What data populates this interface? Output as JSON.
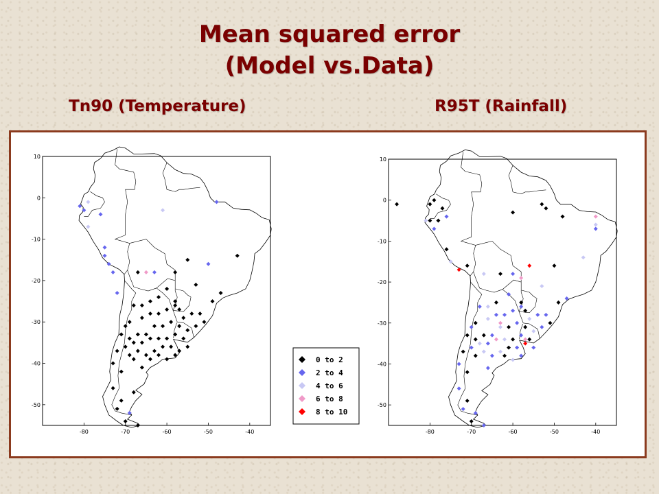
{
  "title_line1": "Mean squared error",
  "title_line2": "(Model vs.Data)",
  "left_panel": {
    "title": "Tn90 (Temperature)"
  },
  "right_panel": {
    "title": "R95T (Rainfall)"
  },
  "legend": [
    {
      "label": "0  to  2",
      "color": "#000000"
    },
    {
      "label": "2  to  4",
      "color": "#6666ee"
    },
    {
      "label": "4  to  6",
      "color": "#c8c8f4"
    },
    {
      "label": "6  to  8",
      "color": "#f09ac8"
    },
    {
      "label": "8  to  10",
      "color": "#ff0000"
    }
  ],
  "axes": {
    "x_ticks": [
      -80,
      -70,
      -60,
      -50,
      -40
    ],
    "y_ticks": [
      10,
      0,
      -10,
      -20,
      -30,
      -40,
      -50
    ],
    "x_range": [
      -90,
      -35
    ],
    "y_range": [
      -55,
      10
    ]
  },
  "maps": [
    {
      "id": "tn90",
      "points": [
        [
          -81,
          -2,
          1
        ],
        [
          -80,
          -3,
          1
        ],
        [
          -79,
          -1,
          2
        ],
        [
          -76,
          -4,
          1
        ],
        [
          -79,
          -7,
          2
        ],
        [
          -75,
          -12,
          1
        ],
        [
          -75,
          -14,
          1
        ],
        [
          -74,
          -16,
          1
        ],
        [
          -73,
          -18,
          1
        ],
        [
          -72,
          -23,
          1
        ],
        [
          -67,
          -18,
          0
        ],
        [
          -65,
          -18,
          3
        ],
        [
          -63,
          -18,
          1
        ],
        [
          -61,
          -3,
          2
        ],
        [
          -48,
          -1,
          1
        ],
        [
          -50,
          -16,
          1
        ],
        [
          -43,
          -14,
          0
        ],
        [
          -55,
          -15,
          0
        ],
        [
          -58,
          -18,
          0
        ],
        [
          -53,
          -21,
          0
        ],
        [
          -47,
          -23,
          0
        ],
        [
          -49,
          -25,
          0
        ],
        [
          -58,
          -25,
          0
        ],
        [
          -60,
          -22,
          0
        ],
        [
          -62,
          -24,
          0
        ],
        [
          -64,
          -25,
          0
        ],
        [
          -66,
          -26,
          0
        ],
        [
          -68,
          -26,
          0
        ],
        [
          -69,
          -30,
          0
        ],
        [
          -66,
          -29,
          0
        ],
        [
          -64,
          -28,
          0
        ],
        [
          -62,
          -28,
          0
        ],
        [
          -60,
          -27,
          0
        ],
        [
          -58,
          -26,
          0
        ],
        [
          -57,
          -27,
          0
        ],
        [
          -56,
          -29,
          0
        ],
        [
          -54,
          -28,
          0
        ],
        [
          -52,
          -28,
          0
        ],
        [
          -51,
          -30,
          0
        ],
        [
          -53,
          -31,
          0
        ],
        [
          -55,
          -32,
          0
        ],
        [
          -57,
          -31,
          0
        ],
        [
          -59,
          -30,
          0
        ],
        [
          -61,
          -31,
          0
        ],
        [
          -63,
          -31,
          0
        ],
        [
          -65,
          -33,
          0
        ],
        [
          -67,
          -33,
          0
        ],
        [
          -69,
          -34,
          0
        ],
        [
          -70,
          -31,
          0
        ],
        [
          -71,
          -33,
          0
        ],
        [
          -70,
          -36,
          0
        ],
        [
          -68,
          -35,
          0
        ],
        [
          -66,
          -35,
          0
        ],
        [
          -64,
          -34,
          0
        ],
        [
          -62,
          -34,
          0
        ],
        [
          -60,
          -34,
          0
        ],
        [
          -58,
          -33,
          0
        ],
        [
          -56,
          -34,
          0
        ],
        [
          -55,
          -36,
          0
        ],
        [
          -57,
          -37,
          0
        ],
        [
          -59,
          -36,
          0
        ],
        [
          -61,
          -36,
          0
        ],
        [
          -63,
          -37,
          0
        ],
        [
          -65,
          -38,
          0
        ],
        [
          -67,
          -37,
          0
        ],
        [
          -69,
          -38,
          0
        ],
        [
          -72,
          -37,
          0
        ],
        [
          -73,
          -40,
          0
        ],
        [
          -71,
          -42,
          0
        ],
        [
          -68,
          -39,
          0
        ],
        [
          -66,
          -41,
          0
        ],
        [
          -64,
          -39,
          0
        ],
        [
          -62,
          -38,
          0
        ],
        [
          -60,
          -39,
          0
        ],
        [
          -58,
          -38,
          0
        ],
        [
          -73,
          -46,
          0
        ],
        [
          -72,
          -51,
          0
        ],
        [
          -69,
          -52,
          1
        ],
        [
          -70,
          -54,
          0
        ],
        [
          -67,
          -55,
          0
        ],
        [
          -71,
          -49,
          0
        ],
        [
          -68,
          -47,
          0
        ]
      ]
    },
    {
      "id": "r95t",
      "points": [
        [
          -88,
          -1,
          0
        ],
        [
          -80,
          -1,
          0
        ],
        [
          -79,
          0,
          0
        ],
        [
          -77,
          -2,
          0
        ],
        [
          -80,
          -5,
          0
        ],
        [
          -78,
          -5,
          0
        ],
        [
          -76,
          -4,
          1
        ],
        [
          -79,
          -7,
          1
        ],
        [
          -81,
          -5,
          2
        ],
        [
          -76,
          -12,
          0
        ],
        [
          -75,
          -15,
          2
        ],
        [
          -73,
          -17,
          4
        ],
        [
          -71,
          -16,
          0
        ],
        [
          -67,
          -18,
          2
        ],
        [
          -63,
          -18,
          0
        ],
        [
          -60,
          -18,
          1
        ],
        [
          -58,
          -19,
          3
        ],
        [
          -56,
          -16,
          4
        ],
        [
          -60,
          -3,
          0
        ],
        [
          -53,
          -1,
          0
        ],
        [
          -52,
          -2,
          0
        ],
        [
          -48,
          -4,
          0
        ],
        [
          -40,
          -4,
          3
        ],
        [
          -40,
          -6,
          2
        ],
        [
          -40,
          -7,
          1
        ],
        [
          -43,
          -14,
          2
        ],
        [
          -50,
          -16,
          0
        ],
        [
          -53,
          -21,
          2
        ],
        [
          -47,
          -24,
          1
        ],
        [
          -49,
          -25,
          0
        ],
        [
          -58,
          -25,
          0
        ],
        [
          -61,
          -23,
          1
        ],
        [
          -64,
          -25,
          0
        ],
        [
          -66,
          -26,
          2
        ],
        [
          -68,
          -26,
          1
        ],
        [
          -69,
          -30,
          0
        ],
        [
          -66,
          -29,
          2
        ],
        [
          -64,
          -28,
          1
        ],
        [
          -62,
          -28,
          1
        ],
        [
          -60,
          -27,
          1
        ],
        [
          -58,
          -26,
          1
        ],
        [
          -57,
          -27,
          0
        ],
        [
          -56,
          -29,
          2
        ],
        [
          -54,
          -28,
          1
        ],
        [
          -52,
          -28,
          1
        ],
        [
          -51,
          -30,
          0
        ],
        [
          -53,
          -31,
          1
        ],
        [
          -55,
          -32,
          2
        ],
        [
          -57,
          -31,
          0
        ],
        [
          -59,
          -30,
          1
        ],
        [
          -61,
          -31,
          0
        ],
        [
          -63,
          -31,
          2
        ],
        [
          -65,
          -33,
          1
        ],
        [
          -67,
          -33,
          0
        ],
        [
          -69,
          -34,
          0
        ],
        [
          -70,
          -31,
          1
        ],
        [
          -71,
          -33,
          0
        ],
        [
          -70,
          -36,
          1
        ],
        [
          -68,
          -35,
          2
        ],
        [
          -66,
          -35,
          1
        ],
        [
          -64,
          -34,
          3
        ],
        [
          -62,
          -34,
          2
        ],
        [
          -60,
          -34,
          0
        ],
        [
          -58,
          -33,
          1
        ],
        [
          -56,
          -34,
          0
        ],
        [
          -55,
          -36,
          1
        ],
        [
          -57,
          -35,
          4
        ],
        [
          -59,
          -36,
          1
        ],
        [
          -61,
          -36,
          0
        ],
        [
          -63,
          -37,
          2
        ],
        [
          -65,
          -38,
          1
        ],
        [
          -67,
          -37,
          2
        ],
        [
          -69,
          -38,
          0
        ],
        [
          -72,
          -37,
          0
        ],
        [
          -73,
          -40,
          1
        ],
        [
          -71,
          -42,
          0
        ],
        [
          -66,
          -41,
          1
        ],
        [
          -62,
          -38,
          0
        ],
        [
          -60,
          -39,
          2
        ],
        [
          -58,
          -38,
          1
        ],
        [
          -73,
          -46,
          1
        ],
        [
          -72,
          -51,
          1
        ],
        [
          -69,
          -52,
          1
        ],
        [
          -70,
          -54,
          0
        ],
        [
          -67,
          -55,
          1
        ],
        [
          -71,
          -49,
          0
        ],
        [
          -63,
          -30,
          3
        ],
        [
          -57,
          -34,
          3
        ]
      ]
    }
  ]
}
